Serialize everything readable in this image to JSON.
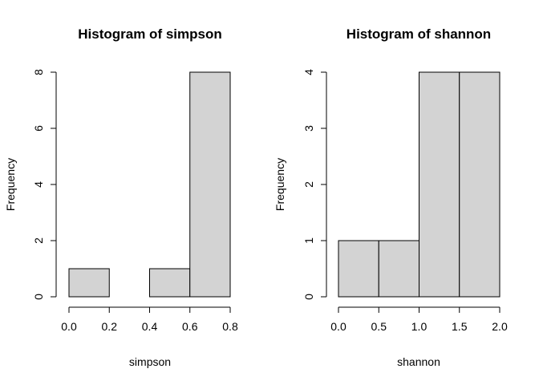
{
  "chart_data": [
    {
      "type": "bar",
      "title": "Histogram of simpson",
      "xlabel": "simpson",
      "ylabel": "Frequency",
      "bins": [
        [
          0.0,
          0.2
        ],
        [
          0.2,
          0.4
        ],
        [
          0.4,
          0.6
        ],
        [
          0.6,
          0.8
        ]
      ],
      "values": [
        1,
        0,
        1,
        8
      ],
      "xlim": [
        0.0,
        0.8
      ],
      "ylim": [
        0,
        8
      ],
      "x_ticks": [
        "0.0",
        "0.2",
        "0.4",
        "0.6",
        "0.8"
      ],
      "y_ticks": [
        "0",
        "2",
        "4",
        "6",
        "8"
      ],
      "grid": false,
      "bar_color": "#d3d3d3"
    },
    {
      "type": "bar",
      "title": "Histogram of shannon",
      "xlabel": "shannon",
      "ylabel": "Frequency",
      "bins": [
        [
          0.0,
          0.5
        ],
        [
          0.5,
          1.0
        ],
        [
          1.0,
          1.5
        ],
        [
          1.5,
          2.0
        ]
      ],
      "values": [
        1,
        1,
        4,
        4
      ],
      "xlim": [
        0.0,
        2.0
      ],
      "ylim": [
        0,
        4
      ],
      "x_ticks": [
        "0.0",
        "0.5",
        "1.0",
        "1.5",
        "2.0"
      ],
      "y_ticks": [
        "0",
        "1",
        "2",
        "3",
        "4"
      ],
      "grid": false,
      "bar_color": "#d3d3d3"
    }
  ]
}
